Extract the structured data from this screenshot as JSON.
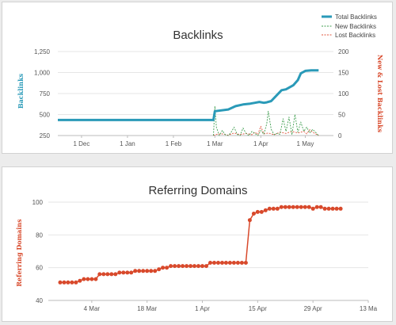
{
  "colors": {
    "total": "#2a9ab8",
    "new": "#3f9e4f",
    "lost": "#e0543c",
    "domains": "#d8492b",
    "domains_axis_label": "#d8492b",
    "grid": "#e6e6e6"
  },
  "chart_data": [
    {
      "type": "line",
      "title": "Backlinks",
      "ylabel": "Backlinks",
      "y2label": "New & Lost Backlinks",
      "ylim": [
        250,
        1250
      ],
      "y_ticks": [
        "250",
        "500",
        "750",
        "1,000",
        "1,250"
      ],
      "y2lim": [
        0,
        200
      ],
      "y2_ticks": [
        "0",
        "50",
        "100",
        "150",
        "200"
      ],
      "x_ticks": [
        "1 Dec",
        "1 Jan",
        "1 Feb",
        "1 Mar",
        "1 Apr",
        "1 May"
      ],
      "xlim": [
        "2012-11-15",
        "2013-05-20"
      ],
      "legend": {
        "position": "top-right",
        "entries": [
          "Total Backlinks",
          "New Backlinks",
          "Lost Backlinks"
        ]
      },
      "series": [
        {
          "name": "Total Backlinks",
          "axis": "left",
          "style": "solid",
          "x": [
            "2012-11-15",
            "2013-02-28",
            "2013-03-01",
            "2013-03-10",
            "2013-03-15",
            "2013-03-20",
            "2013-03-25",
            "2013-03-28",
            "2013-03-31",
            "2013-04-03",
            "2013-04-05",
            "2013-04-08",
            "2013-04-15",
            "2013-04-18",
            "2013-04-20",
            "2013-04-23",
            "2013-04-26",
            "2013-04-28",
            "2013-05-01",
            "2013-05-05",
            "2013-05-10"
          ],
          "values": [
            435,
            435,
            540,
            560,
            600,
            620,
            630,
            640,
            650,
            640,
            645,
            660,
            790,
            800,
            820,
            850,
            910,
            990,
            1020,
            1025,
            1025
          ]
        },
        {
          "name": "New Backlinks",
          "axis": "right",
          "style": "dashed",
          "x": [
            "2013-02-28",
            "2013-03-01",
            "2013-03-02",
            "2013-03-04",
            "2013-03-06",
            "2013-03-08",
            "2013-03-10",
            "2013-03-12",
            "2013-03-14",
            "2013-03-16",
            "2013-03-18",
            "2013-03-20",
            "2013-03-22",
            "2013-03-24",
            "2013-03-26",
            "2013-03-28",
            "2013-03-30",
            "2013-04-01",
            "2013-04-03",
            "2013-04-05",
            "2013-04-06",
            "2013-04-08",
            "2013-04-10",
            "2013-04-12",
            "2013-04-14",
            "2013-04-16",
            "2013-04-18",
            "2013-04-20",
            "2013-04-22",
            "2013-04-24",
            "2013-04-26",
            "2013-04-28",
            "2013-04-30",
            "2013-05-02",
            "2013-05-04",
            "2013-05-06",
            "2013-05-10"
          ],
          "values": [
            0,
            70,
            20,
            0,
            12,
            2,
            0,
            8,
            20,
            3,
            0,
            18,
            5,
            0,
            10,
            5,
            0,
            12,
            3,
            28,
            58,
            15,
            2,
            5,
            3,
            40,
            10,
            44,
            2,
            50,
            8,
            32,
            10,
            20,
            6,
            15,
            0
          ]
        },
        {
          "name": "Lost Backlinks",
          "axis": "right",
          "style": "dashed",
          "x": [
            "2013-02-28",
            "2013-03-02",
            "2013-03-06",
            "2013-03-10",
            "2013-03-14",
            "2013-03-18",
            "2013-03-22",
            "2013-03-26",
            "2013-03-28",
            "2013-03-30",
            "2013-04-01",
            "2013-04-03",
            "2013-04-06",
            "2013-04-10",
            "2013-04-14",
            "2013-04-18",
            "2013-04-22",
            "2013-04-26",
            "2013-04-30",
            "2013-05-02",
            "2013-05-04",
            "2013-05-06",
            "2013-05-10"
          ],
          "values": [
            0,
            3,
            4,
            1,
            6,
            2,
            5,
            2,
            8,
            3,
            22,
            4,
            6,
            2,
            8,
            5,
            10,
            6,
            10,
            4,
            14,
            8,
            0
          ]
        }
      ]
    },
    {
      "type": "line",
      "title": "Referring Domains",
      "ylabel": "Referring Domains",
      "ylim": [
        40,
        100
      ],
      "y_ticks": [
        "40",
        "60",
        "80",
        "100"
      ],
      "x_ticks": [
        "4 Mar",
        "18 Mar",
        "1 Apr",
        "15 Apr",
        "29 Apr",
        "13 Ma"
      ],
      "xlim": [
        "2013-02-21",
        "2013-05-13"
      ],
      "series": [
        {
          "name": "Referring Domains",
          "x": [
            "2013-02-24",
            "2013-02-25",
            "2013-02-26",
            "2013-02-27",
            "2013-02-28",
            "2013-03-01",
            "2013-03-02",
            "2013-03-03",
            "2013-03-04",
            "2013-03-05",
            "2013-03-06",
            "2013-03-07",
            "2013-03-08",
            "2013-03-09",
            "2013-03-10",
            "2013-03-11",
            "2013-03-12",
            "2013-03-13",
            "2013-03-14",
            "2013-03-15",
            "2013-03-16",
            "2013-03-17",
            "2013-03-18",
            "2013-03-19",
            "2013-03-20",
            "2013-03-21",
            "2013-03-22",
            "2013-03-23",
            "2013-03-24",
            "2013-03-25",
            "2013-03-26",
            "2013-03-27",
            "2013-03-28",
            "2013-03-29",
            "2013-03-30",
            "2013-03-31",
            "2013-04-01",
            "2013-04-02",
            "2013-04-03",
            "2013-04-04",
            "2013-04-05",
            "2013-04-06",
            "2013-04-07",
            "2013-04-08",
            "2013-04-09",
            "2013-04-10",
            "2013-04-11",
            "2013-04-12",
            "2013-04-13",
            "2013-04-14",
            "2013-04-15",
            "2013-04-16",
            "2013-04-17",
            "2013-04-18",
            "2013-04-19",
            "2013-04-20",
            "2013-04-21",
            "2013-04-22",
            "2013-04-23",
            "2013-04-24",
            "2013-04-25",
            "2013-04-26",
            "2013-04-27",
            "2013-04-28",
            "2013-04-29",
            "2013-04-30",
            "2013-05-01",
            "2013-05-02",
            "2013-05-03",
            "2013-05-04",
            "2013-05-05",
            "2013-05-06"
          ],
          "values": [
            51,
            51,
            51,
            51,
            51,
            52,
            53,
            53,
            53,
            53,
            56,
            56,
            56,
            56,
            56,
            57,
            57,
            57,
            57,
            58,
            58,
            58,
            58,
            58,
            58,
            59,
            60,
            60,
            61,
            61,
            61,
            61,
            61,
            61,
            61,
            61,
            61,
            61,
            63,
            63,
            63,
            63,
            63,
            63,
            63,
            63,
            63,
            63,
            89,
            93,
            94,
            94,
            95,
            96,
            96,
            96,
            97,
            97,
            97,
            97,
            97,
            97,
            97,
            97,
            96,
            97,
            97,
            96,
            96,
            96,
            96,
            96
          ]
        }
      ]
    }
  ]
}
